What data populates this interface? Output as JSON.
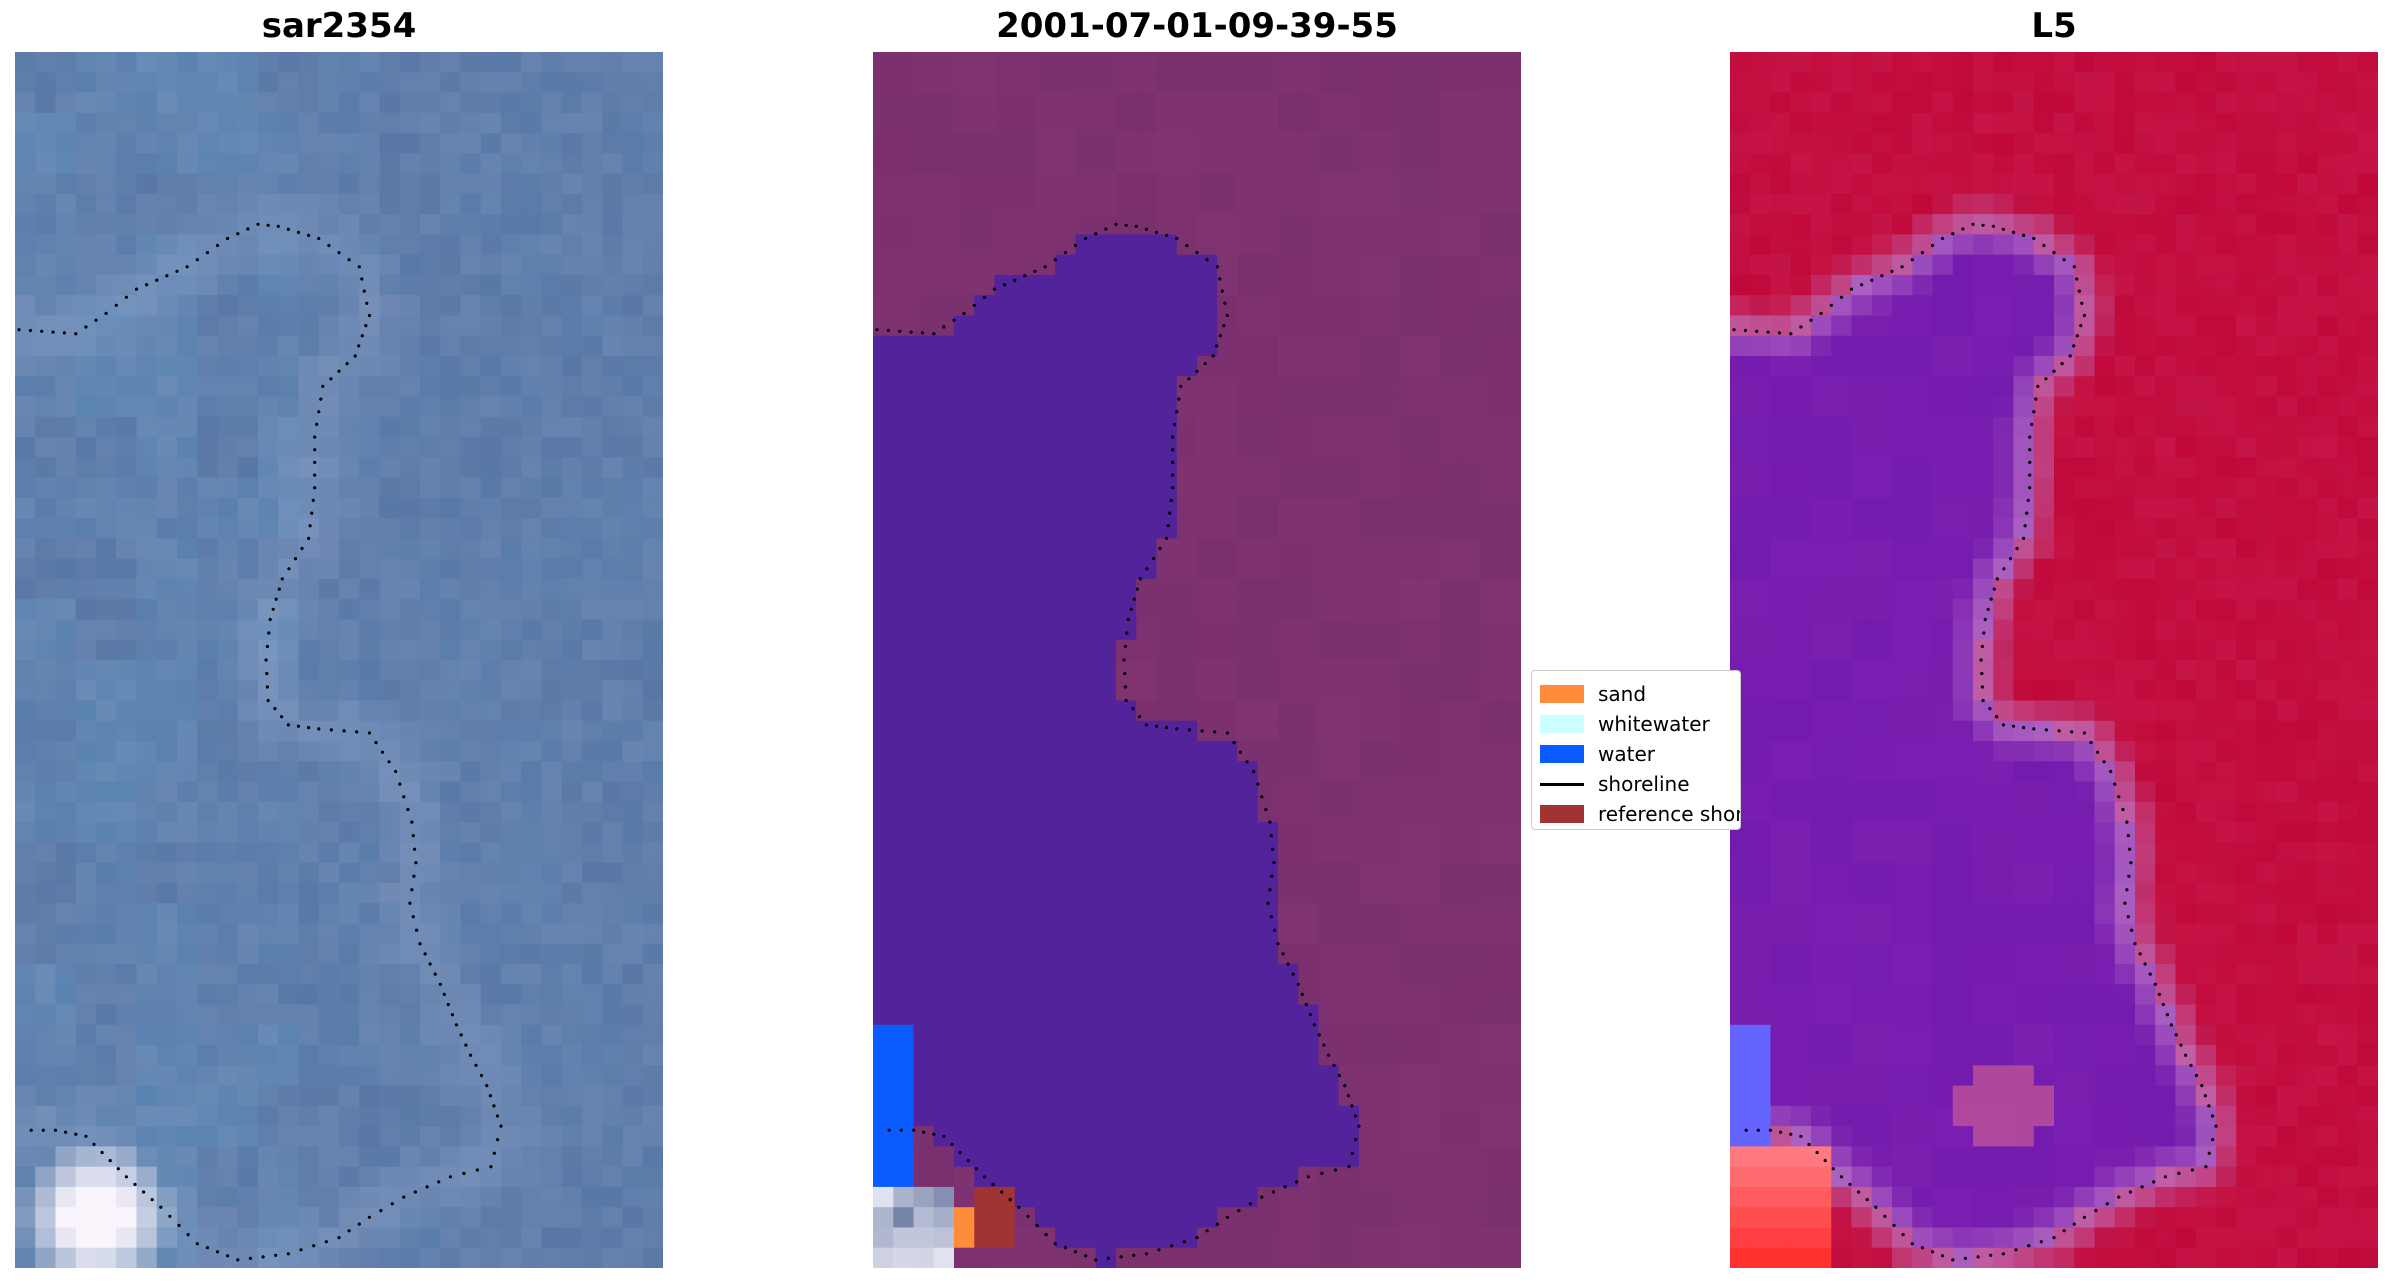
{
  "panels": [
    {
      "title": "sar2354",
      "colormap": "rgb"
    },
    {
      "title": "2001-07-01-09-39-55",
      "colormap": "classified"
    },
    {
      "title": "L5",
      "colormap": "mndwi"
    }
  ],
  "legend": {
    "items": [
      {
        "label": "sand",
        "type": "patch",
        "color": "#ff8c3a"
      },
      {
        "label": "whitewater",
        "type": "patch",
        "color": "#ccffff"
      },
      {
        "label": "water",
        "type": "patch",
        "color": "#0a5cff"
      },
      {
        "label": "shoreline",
        "type": "line",
        "color": "#000000"
      },
      {
        "label": "reference shoreline",
        "type": "patch",
        "color": "#a23333"
      }
    ]
  },
  "colors": {
    "classified_water_body": "#52239a",
    "classified_land": "#7a2f6e",
    "mndwi_land": "#c0093a",
    "mndwi_water": "#7a1fb0",
    "rgb_base": "#5877a6"
  },
  "chart_data": {
    "type": "heatmap",
    "grid": false,
    "axes_visible": false,
    "image_size": [
      32,
      60
    ],
    "shoreline_style": "dotted",
    "shoreline": [
      [
        0.2,
        13.7
      ],
      [
        3,
        13.9
      ],
      [
        4.5,
        12.9
      ],
      [
        6,
        11.7
      ],
      [
        8.5,
        10.6
      ],
      [
        10.5,
        9.2
      ],
      [
        12,
        8.5
      ],
      [
        13,
        8.6
      ],
      [
        15,
        9.2
      ],
      [
        17,
        10.6
      ],
      [
        17.5,
        13
      ],
      [
        16.8,
        15
      ],
      [
        15.2,
        16.5
      ],
      [
        14.8,
        19
      ],
      [
        14.8,
        21.5
      ],
      [
        14.5,
        24
      ],
      [
        13.2,
        26
      ],
      [
        12.6,
        28
      ],
      [
        12.4,
        30
      ],
      [
        12.5,
        32
      ],
      [
        13.5,
        33.2
      ],
      [
        15,
        33.4
      ],
      [
        17.5,
        33.6
      ],
      [
        18.8,
        35.5
      ],
      [
        19.6,
        38
      ],
      [
        19.8,
        40
      ],
      [
        19.5,
        42
      ],
      [
        20,
        44
      ],
      [
        21,
        46
      ],
      [
        21.8,
        48
      ],
      [
        22.5,
        49.5
      ],
      [
        23.3,
        51
      ],
      [
        24,
        53
      ],
      [
        23.5,
        55
      ],
      [
        21.5,
        55.5
      ],
      [
        19.2,
        56.5
      ],
      [
        17.5,
        57.5
      ],
      [
        16,
        58.5
      ],
      [
        13.5,
        59.3
      ],
      [
        11,
        59.6
      ],
      [
        9,
        58.8
      ],
      [
        7.2,
        57
      ],
      [
        5.5,
        55.5
      ],
      [
        3.5,
        53.5
      ],
      [
        2,
        53.2
      ],
      [
        0.2,
        53.2
      ]
    ]
  }
}
